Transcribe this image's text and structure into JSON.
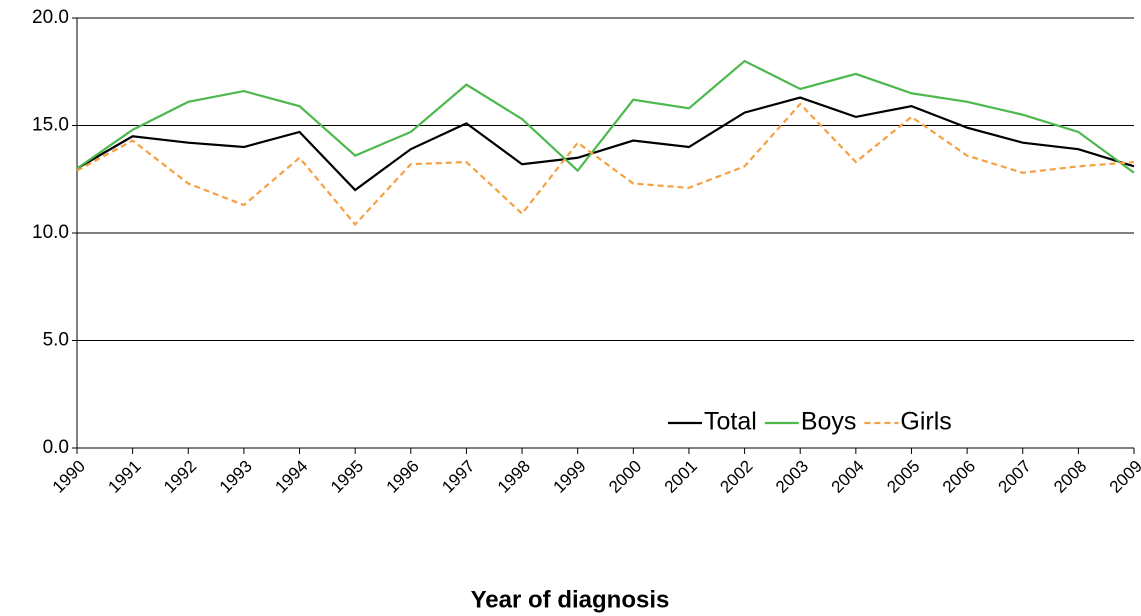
{
  "chart_data": {
    "type": "line",
    "x_label": "Year of diagnosis",
    "categories": [
      "1990",
      "1991",
      "1992",
      "1993",
      "1994",
      "1995",
      "1996",
      "1997",
      "1998",
      "1999",
      "2000",
      "2001",
      "2002",
      "2003",
      "2004",
      "2005",
      "2006",
      "2007",
      "2008",
      "2009"
    ],
    "series": [
      {
        "name": "Total",
        "color": "#000000",
        "dashed": false,
        "values": [
          13.0,
          14.5,
          14.2,
          14.0,
          14.7,
          12.0,
          13.9,
          15.1,
          13.2,
          13.5,
          14.3,
          14.0,
          15.6,
          16.3,
          15.4,
          15.9,
          14.9,
          14.2,
          13.9,
          13.1
        ]
      },
      {
        "name": "Boys",
        "color": "#4db84d",
        "dashed": false,
        "values": [
          13.0,
          14.8,
          16.1,
          16.6,
          15.9,
          13.6,
          14.7,
          16.9,
          15.3,
          12.9,
          16.2,
          15.8,
          18.0,
          16.7,
          17.4,
          16.5,
          16.1,
          15.5,
          14.7,
          12.8
        ]
      },
      {
        "name": "Girls",
        "color": "#f5a041",
        "dashed": true,
        "values": [
          12.9,
          14.3,
          12.3,
          11.3,
          13.5,
          10.4,
          13.2,
          13.3,
          10.9,
          14.2,
          12.3,
          12.1,
          13.1,
          16.0,
          13.3,
          15.4,
          13.6,
          12.8,
          13.1,
          13.3
        ]
      }
    ],
    "ylim": [
      0,
      20
    ],
    "yticks": [
      {
        "value": 0,
        "label": "0.0"
      },
      {
        "value": 5,
        "label": "5.0"
      },
      {
        "value": 10,
        "label": "10.0"
      },
      {
        "value": 15,
        "label": "15.0"
      },
      {
        "value": 20,
        "label": "20.0"
      }
    ],
    "grid": true,
    "legend": "bottom-right"
  }
}
